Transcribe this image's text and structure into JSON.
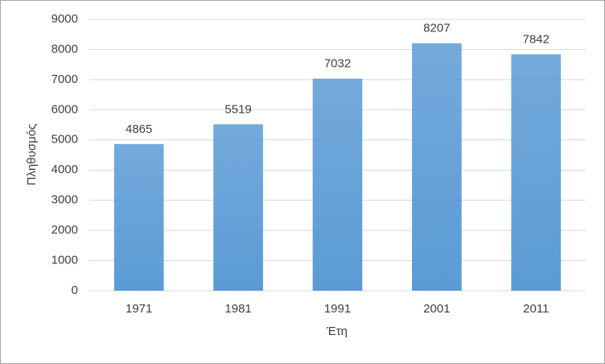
{
  "chart_data": {
    "type": "bar",
    "x_label": "Έτη",
    "y_label": "Πληθυσμός",
    "categories": [
      "1971",
      "1981",
      "1991",
      "2001",
      "2011"
    ],
    "values": [
      4865,
      5519,
      7032,
      8207,
      7842
    ],
    "color": "#5b9bd5",
    "ylim": [
      0,
      9000
    ],
    "yticks": [
      0,
      1000,
      2000,
      3000,
      4000,
      5000,
      6000,
      7000,
      8000,
      9000
    ],
    "grid": true
  }
}
